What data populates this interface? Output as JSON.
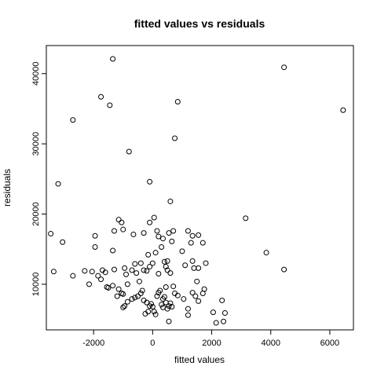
{
  "chart_data": {
    "type": "scatter",
    "title": "fitted values vs residuals",
    "xlabel": "fitted values",
    "ylabel": "residuals",
    "xlim": [
      -3600,
      6800
    ],
    "ylim": [
      3500,
      44000
    ],
    "xticks": [
      -2000,
      0,
      2000,
      4000,
      6000
    ],
    "yticks": [
      10000,
      20000,
      30000,
      40000
    ],
    "grid": false,
    "point_color": "#000000",
    "points": [
      [
        -1350,
        42100
      ],
      [
        4450,
        40900
      ],
      [
        6450,
        34800
      ],
      [
        -1750,
        36700
      ],
      [
        -1450,
        35500
      ],
      [
        850,
        36000
      ],
      [
        -2700,
        33400
      ],
      [
        -800,
        28900
      ],
      [
        750,
        30800
      ],
      [
        -3200,
        24300
      ],
      [
        -100,
        24600
      ],
      [
        600,
        21800
      ],
      [
        3150,
        19400
      ],
      [
        -3450,
        17200
      ],
      [
        -3050,
        16000
      ],
      [
        -1950,
        16900
      ],
      [
        -1950,
        15300
      ],
      [
        -1300,
        17600
      ],
      [
        -1150,
        19200
      ],
      [
        -1050,
        18800
      ],
      [
        -1000,
        17800
      ],
      [
        -650,
        17100
      ],
      [
        -300,
        17300
      ],
      [
        50,
        19500
      ],
      [
        -100,
        18800
      ],
      [
        150,
        17600
      ],
      [
        200,
        16800
      ],
      [
        350,
        16500
      ],
      [
        550,
        17300
      ],
      [
        650,
        16100
      ],
      [
        700,
        17600
      ],
      [
        1200,
        17600
      ],
      [
        1350,
        16900
      ],
      [
        1300,
        15900
      ],
      [
        1550,
        17000
      ],
      [
        1700,
        15900
      ],
      [
        1000,
        14700
      ],
      [
        -1350,
        14800
      ],
      [
        -3350,
        11800
      ],
      [
        -2700,
        11200
      ],
      [
        -2300,
        11900
      ],
      [
        -2050,
        11800
      ],
      [
        -2150,
        10000
      ],
      [
        -1850,
        11200
      ],
      [
        -1750,
        10700
      ],
      [
        -1600,
        11700
      ],
      [
        -1700,
        12000
      ],
      [
        -1550,
        9600
      ],
      [
        -1500,
        9500
      ],
      [
        -1350,
        9800
      ],
      [
        -1300,
        12100
      ],
      [
        -1150,
        9300
      ],
      [
        -1200,
        8300
      ],
      [
        -1050,
        8700
      ],
      [
        -950,
        12300
      ],
      [
        -900,
        11400
      ],
      [
        -850,
        10000
      ],
      [
        -700,
        12000
      ],
      [
        -600,
        12900
      ],
      [
        -550,
        11600
      ],
      [
        -400,
        13000
      ],
      [
        -300,
        12000
      ],
      [
        -200,
        11900
      ],
      [
        -150,
        14200
      ],
      [
        -100,
        12500
      ],
      [
        0,
        13000
      ],
      [
        100,
        14500
      ],
      [
        200,
        11500
      ],
      [
        300,
        15300
      ],
      [
        400,
        13200
      ],
      [
        450,
        12500
      ],
      [
        500,
        13300
      ],
      [
        500,
        12000
      ],
      [
        600,
        11600
      ],
      [
        700,
        9700
      ],
      [
        750,
        8700
      ],
      [
        850,
        8400
      ],
      [
        1100,
        12700
      ],
      [
        1350,
        13300
      ],
      [
        1400,
        12300
      ],
      [
        1550,
        12300
      ],
      [
        1800,
        13000
      ],
      [
        1750,
        9300
      ],
      [
        1700,
        8700
      ],
      [
        1350,
        8800
      ],
      [
        1450,
        8300
      ],
      [
        1550,
        7600
      ],
      [
        1050,
        7900
      ],
      [
        1200,
        6500
      ],
      [
        1200,
        5600
      ],
      [
        -1000,
        8600
      ],
      [
        -950,
        6900
      ],
      [
        -1000,
        6700
      ],
      [
        -850,
        7500
      ],
      [
        -700,
        7900
      ],
      [
        -600,
        8100
      ],
      [
        -500,
        8300
      ],
      [
        -400,
        8700
      ],
      [
        -350,
        9100
      ],
      [
        -300,
        7700
      ],
      [
        -200,
        7400
      ],
      [
        -100,
        6900
      ],
      [
        -50,
        7200
      ],
      [
        0,
        6800
      ],
      [
        50,
        6100
      ],
      [
        100,
        5700
      ],
      [
        150,
        8300
      ],
      [
        200,
        8800
      ],
      [
        250,
        9100
      ],
      [
        300,
        7100
      ],
      [
        350,
        7900
      ],
      [
        350,
        6700
      ],
      [
        400,
        8200
      ],
      [
        450,
        9600
      ],
      [
        450,
        7400
      ],
      [
        500,
        6500
      ],
      [
        550,
        6900
      ],
      [
        600,
        7300
      ],
      [
        650,
        6800
      ],
      [
        550,
        4700
      ],
      [
        -250,
        5800
      ],
      [
        -150,
        6100
      ],
      [
        -450,
        10400
      ],
      [
        1500,
        10400
      ],
      [
        2050,
        6000
      ],
      [
        2150,
        4500
      ],
      [
        2350,
        7700
      ],
      [
        2400,
        4700
      ],
      [
        2450,
        5900
      ],
      [
        3850,
        14500
      ],
      [
        4450,
        12100
      ]
    ]
  }
}
